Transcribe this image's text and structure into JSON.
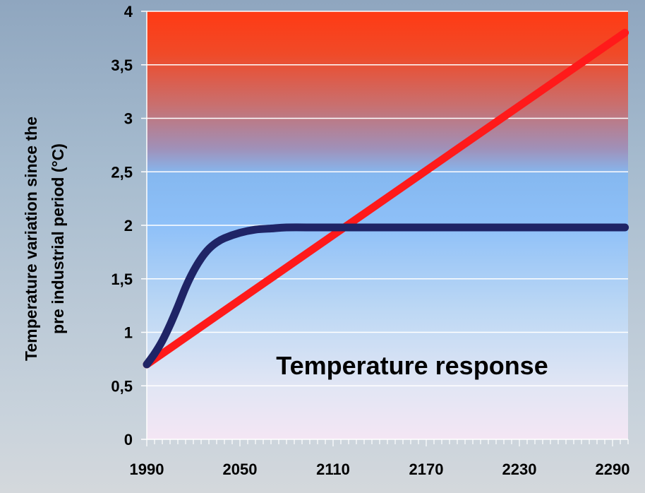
{
  "chart_data": {
    "type": "line",
    "title": "",
    "annotation": "Temperature response",
    "ylabel_line1": "Temperature variation since the",
    "ylabel_line2": "pre industrial period (°C)",
    "xlabel": "",
    "xlim": [
      1990,
      2300
    ],
    "ylim": [
      0,
      4
    ],
    "x_ticks": [
      1990,
      2050,
      2110,
      2170,
      2230,
      2290
    ],
    "x_tick_labels": [
      "1990",
      "2050",
      "2110",
      "2170",
      "2230",
      "2290"
    ],
    "y_ticks": [
      0,
      0.5,
      1,
      1.5,
      2,
      2.5,
      3,
      3.5,
      4
    ],
    "y_tick_labels": [
      "0",
      "0,5",
      "1",
      "1,5",
      "2",
      "2,5",
      "3",
      "3,5",
      "4"
    ],
    "grid": true,
    "legend": "none",
    "series": [
      {
        "color": "#ff1a1a",
        "x": [
          1990,
          2298
        ],
        "y": [
          0.7,
          3.8
        ]
      },
      {
        "color": "#1f2466",
        "x": [
          1990,
          1995,
          2000,
          2005,
          2010,
          2015,
          2020,
          2025,
          2030,
          2035,
          2040,
          2050,
          2060,
          2070,
          2080,
          2100,
          2120,
          2150,
          2200,
          2250,
          2298
        ],
        "y": [
          0.7,
          0.8,
          0.92,
          1.07,
          1.24,
          1.42,
          1.57,
          1.69,
          1.78,
          1.84,
          1.88,
          1.93,
          1.96,
          1.97,
          1.98,
          1.98,
          1.98,
          1.98,
          1.98,
          1.98,
          1.98
        ]
      }
    ]
  }
}
